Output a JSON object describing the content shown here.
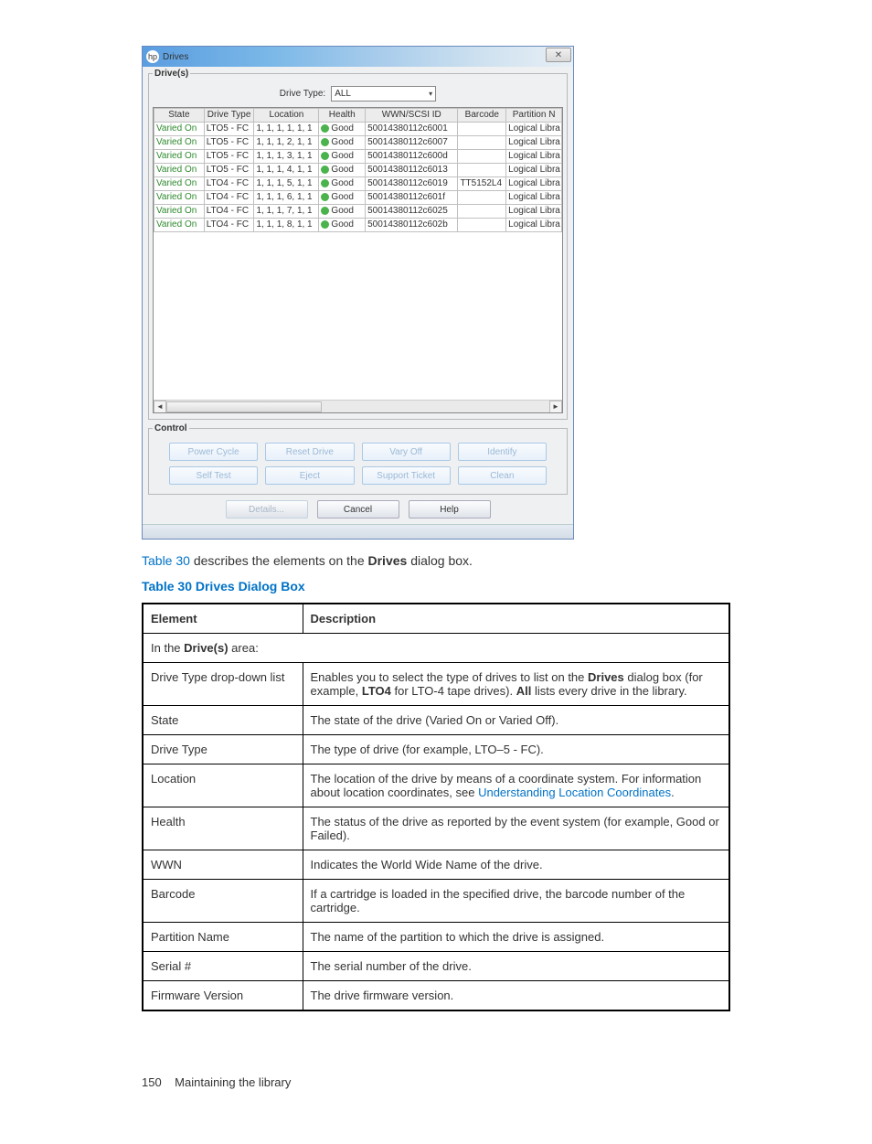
{
  "dialog": {
    "title": "Drives",
    "drives_legend": "Drive(s)",
    "control_legend": "Control",
    "drivetype_label": "Drive Type:",
    "drivetype_value": "ALL",
    "columns": {
      "state": "State",
      "drive_type": "Drive Type",
      "location": "Location",
      "health": "Health",
      "wwn": "WWN/SCSI ID",
      "barcode": "Barcode",
      "partition": "Partition N"
    },
    "rows": [
      {
        "state": "Varied On",
        "dtype": "LTO5 - FC",
        "loc": "1, 1, 1, 1, 1, 1",
        "health": "Good",
        "wwn": "50014380112c6001",
        "barcode": "",
        "part": "Logical Libra"
      },
      {
        "state": "Varied On",
        "dtype": "LTO5 - FC",
        "loc": "1, 1, 1, 2, 1, 1",
        "health": "Good",
        "wwn": "50014380112c6007",
        "barcode": "",
        "part": "Logical Libra"
      },
      {
        "state": "Varied On",
        "dtype": "LTO5 - FC",
        "loc": "1, 1, 1, 3, 1, 1",
        "health": "Good",
        "wwn": "50014380112c600d",
        "barcode": "",
        "part": "Logical Libra"
      },
      {
        "state": "Varied On",
        "dtype": "LTO5 - FC",
        "loc": "1, 1, 1, 4, 1, 1",
        "health": "Good",
        "wwn": "50014380112c6013",
        "barcode": "",
        "part": "Logical Libra"
      },
      {
        "state": "Varied On",
        "dtype": "LTO4 - FC",
        "loc": "1, 1, 1, 5, 1, 1",
        "health": "Good",
        "wwn": "50014380112c6019",
        "barcode": "TT5152L4",
        "part": "Logical Libra"
      },
      {
        "state": "Varied On",
        "dtype": "LTO4 - FC",
        "loc": "1, 1, 1, 6, 1, 1",
        "health": "Good",
        "wwn": "50014380112c601f",
        "barcode": "",
        "part": "Logical Libra"
      },
      {
        "state": "Varied On",
        "dtype": "LTO4 - FC",
        "loc": "1, 1, 1, 7, 1, 1",
        "health": "Good",
        "wwn": "50014380112c6025",
        "barcode": "",
        "part": "Logical Libra"
      },
      {
        "state": "Varied On",
        "dtype": "LTO4 - FC",
        "loc": "1, 1, 1, 8, 1, 1",
        "health": "Good",
        "wwn": "50014380112c602b",
        "barcode": "",
        "part": "Logical Libra"
      }
    ],
    "control_buttons": {
      "power_cycle": "Power Cycle",
      "reset_drive": "Reset Drive",
      "vary_off": "Vary Off",
      "identify": "Identify",
      "self_test": "Self Test",
      "eject": "Eject",
      "support_ticket": "Support Ticket",
      "clean": "Clean"
    },
    "bottom_buttons": {
      "details": "Details...",
      "cancel": "Cancel",
      "help": "Help"
    }
  },
  "intro": {
    "link": "Table 30",
    "text_mid": " describes the elements on the ",
    "bold": "Drives",
    "text_end": " dialog box."
  },
  "caption": "Table 30 Drives Dialog Box",
  "doc_table": {
    "head_element": "Element",
    "head_description": "Description",
    "area_prefix": "In the ",
    "area_bold": "Drive(s)",
    "area_suffix": " area:",
    "rows": [
      {
        "el": "Drive Type drop-down list",
        "desc_pre": "Enables you to select the type of drives to list on the ",
        "b1": "Drives",
        "desc_mid": " dialog box (for example, ",
        "b2": "LTO4",
        "desc_mid2": " for LTO-4 tape drives). ",
        "b3": "All",
        "desc_end": " lists every drive in the library."
      },
      {
        "el": "State",
        "desc": "The state of the drive (Varied On or Varied Off)."
      },
      {
        "el": "Drive Type",
        "desc": "The type of drive (for example, LTO–5 - FC)."
      },
      {
        "el": "Location",
        "desc_pre": "The location of the drive by means of a coordinate system. For information about location coordinates, see ",
        "link": "Understanding Location Coordinates",
        "desc_end": "."
      },
      {
        "el": "Health",
        "desc": "The status of the drive as reported by the event system (for example, Good or Failed)."
      },
      {
        "el": "WWN",
        "desc": "Indicates the World Wide Name of the drive."
      },
      {
        "el": "Barcode",
        "desc": "If a cartridge is loaded in the specified drive, the barcode number of the cartridge."
      },
      {
        "el": "Partition Name",
        "desc": "The name of the partition to which the drive is assigned."
      },
      {
        "el": "Serial #",
        "desc": "The serial number of the drive."
      },
      {
        "el": "Firmware Version",
        "desc": "The drive firmware version."
      }
    ]
  },
  "footer": {
    "page": "150",
    "text": "Maintaining the library"
  }
}
